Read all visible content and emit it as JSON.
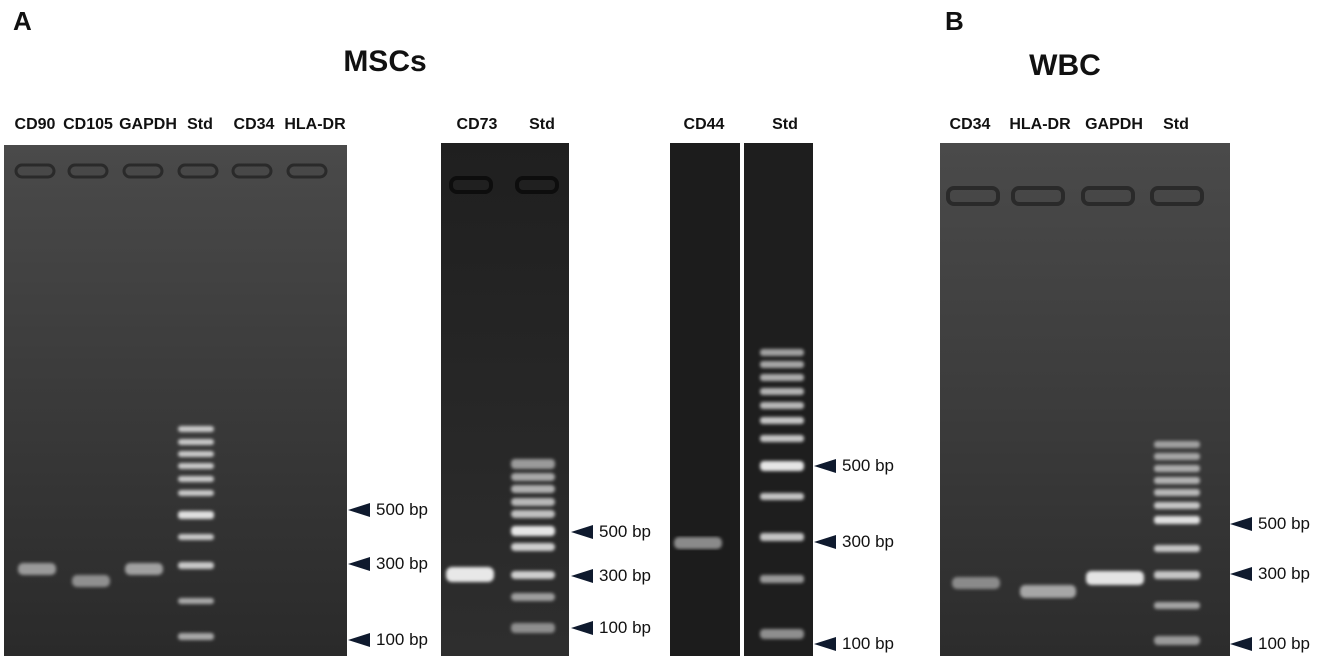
{
  "panels": [
    {
      "letter": "A",
      "title": "MSCs"
    },
    {
      "letter": "B",
      "title": "WBC"
    }
  ],
  "gels": {
    "gel1": {
      "lanes": [
        "CD90",
        "CD105",
        "GAPDH",
        "Std",
        "CD34",
        "HLA-DR"
      ],
      "markers": [
        "500 bp",
        "300 bp",
        "100 bp"
      ]
    },
    "gel2": {
      "lanes": [
        "CD73",
        "Std"
      ],
      "markers": [
        "500 bp",
        "300 bp",
        "100 bp"
      ]
    },
    "gel3": {
      "lanes": [
        "CD44",
        "Std"
      ],
      "markers": [
        "500 bp",
        "300 bp",
        "100 bp"
      ]
    },
    "gel4": {
      "lanes": [
        "CD34",
        "HLA-DR",
        "GAPDH",
        "Std"
      ],
      "markers": [
        "500 bp",
        "300 bp",
        "100 bp"
      ]
    }
  },
  "colors": {
    "gel_light": "#474747",
    "gel_dark": "#1d1d1d",
    "band": "#e6e6e6",
    "arrow": "#0f1a2e"
  }
}
